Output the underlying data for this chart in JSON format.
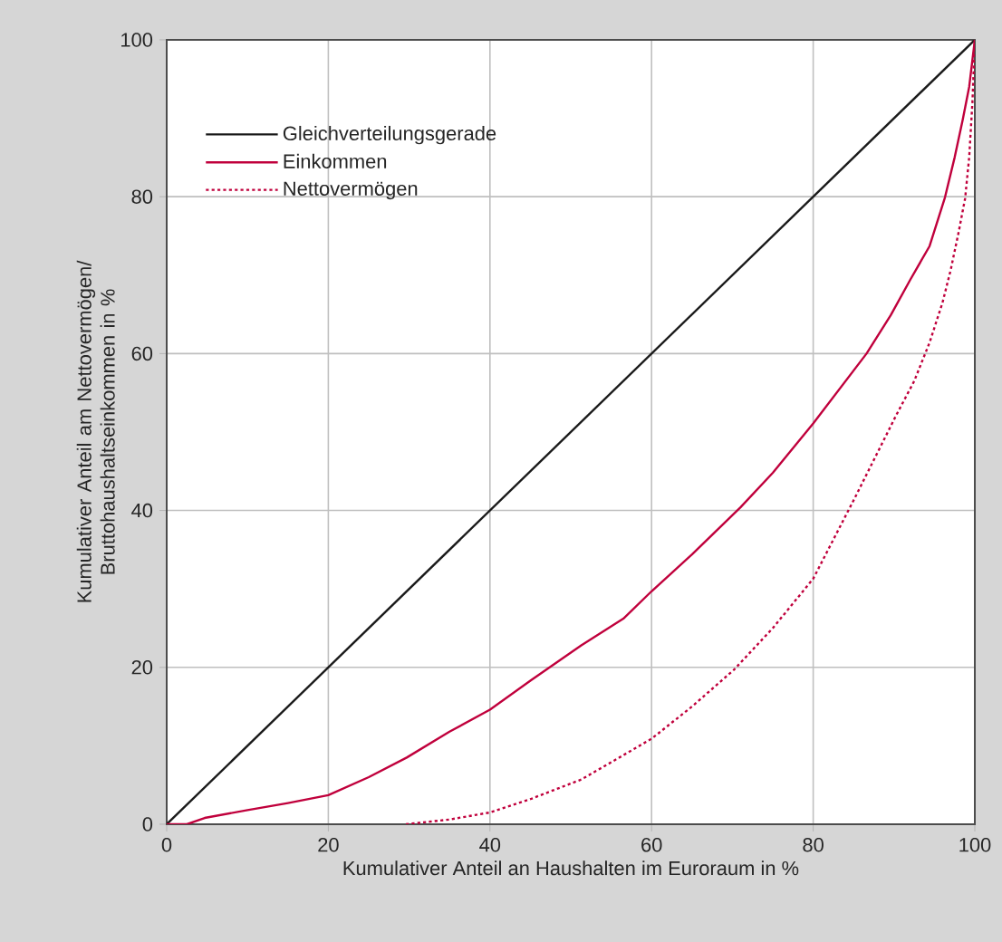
{
  "chart_data": {
    "type": "line",
    "xlabel": "Kumulativer Anteil an Haushalten im Euroraum in %",
    "ylabel": "Kumulativer Anteil am Nettovermögen/ Bruttohaushaltseinkommen in %",
    "xlim": [
      0,
      100
    ],
    "ylim": [
      0,
      100
    ],
    "xticks": [
      0,
      20,
      40,
      60,
      80,
      100
    ],
    "yticks": [
      0,
      20,
      40,
      60,
      80,
      100
    ],
    "grid": true,
    "legend": "top left",
    "series": [
      {
        "name": "Gleichverteilungsgerade",
        "color": "#1a1a1a",
        "line_style": "solid",
        "x": [
          0,
          100
        ],
        "values": [
          0,
          100
        ]
      },
      {
        "name": "Einkommen",
        "color": "#c0003c",
        "line_style": "solid",
        "x": [
          0,
          2.5,
          4.7,
          10,
          15,
          20,
          25,
          29.7,
          35,
          40,
          45,
          51.3,
          56.5,
          60,
          65,
          71,
          75,
          80,
          86.6,
          89.6,
          92,
          94.4,
          96.3,
          97.5,
          98.5,
          99.3,
          100
        ],
        "values": [
          0,
          0,
          0.8,
          1.8,
          2.7,
          3.7,
          6,
          8.5,
          11.8,
          14.6,
          18.3,
          22.8,
          26.2,
          29.7,
          34.4,
          40.4,
          44.8,
          51.1,
          60,
          64.9,
          69.4,
          73.7,
          79.9,
          85,
          89.8,
          94,
          100
        ]
      },
      {
        "name": "Nettovermögen",
        "color": "#c0003c",
        "line_style": "dotted",
        "x": [
          29.6,
          35,
          40,
          45,
          51.3,
          55,
          60,
          65,
          70.2,
          75,
          80,
          85.1,
          90.3,
          92.5,
          94.4,
          96,
          97,
          98,
          98.8,
          99.3,
          99.7,
          100
        ],
        "values": [
          0,
          0.6,
          1.5,
          3.2,
          5.7,
          7.9,
          10.9,
          15,
          19.7,
          25,
          31.3,
          41.5,
          52.2,
          56.5,
          61.4,
          66.5,
          70.6,
          75.5,
          79.8,
          85,
          92,
          100
        ]
      }
    ]
  }
}
